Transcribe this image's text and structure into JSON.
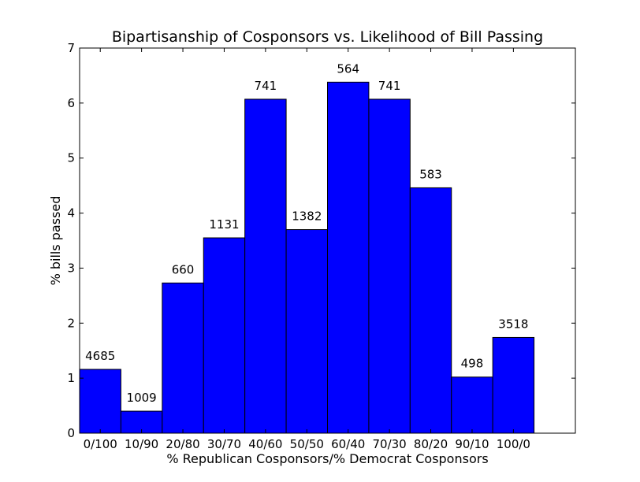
{
  "chart_data": {
    "type": "bar",
    "title": "Bipartisanship of Cosponsors vs. Likelihood of Bill Passing",
    "xlabel": "% Republican Cosponsors/% Democrat Cosponsors",
    "ylabel": "% bills passed",
    "ylim": [
      0,
      7
    ],
    "yticks": [
      0,
      1,
      2,
      3,
      4,
      5,
      6,
      7
    ],
    "xlim_bins": 12,
    "grid": false,
    "legend": "none",
    "categories": [
      "0/100",
      "10/90",
      "20/80",
      "30/70",
      "40/60",
      "50/50",
      "60/40",
      "70/30",
      "80/20",
      "90/10",
      "100/0"
    ],
    "values": [
      1.16,
      0.4,
      2.73,
      3.55,
      6.07,
      3.7,
      6.38,
      6.07,
      4.46,
      1.02,
      1.74
    ],
    "data_labels": [
      "4685",
      "1009",
      "660",
      "1131",
      "741",
      "1382",
      "564",
      "741",
      "583",
      "498",
      "3518"
    ],
    "colors": {
      "bar_fill": "#0000ff",
      "bar_stroke": "#000000",
      "axes": "#000000",
      "background": "#ffffff"
    }
  }
}
